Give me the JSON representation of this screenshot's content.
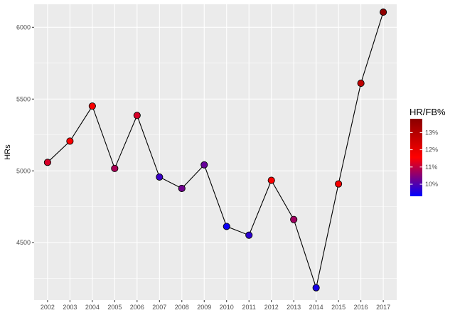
{
  "chart_data": {
    "type": "line",
    "title": "",
    "xlabel": "",
    "ylabel": "HRs",
    "x": [
      2002,
      2003,
      2004,
      2005,
      2006,
      2007,
      2008,
      2009,
      2010,
      2011,
      2012,
      2013,
      2014,
      2015,
      2016,
      2017
    ],
    "series": [
      {
        "values": [
          5059,
          5207,
          5451,
          5017,
          5386,
          4957,
          4878,
          5042,
          4613,
          4552,
          4934,
          4661,
          4186,
          4909,
          5610,
          6105
        ]
      }
    ],
    "color_values": [
      11.2,
      11.6,
      11.7,
      10.8,
      11.2,
      9.8,
      10.3,
      10.2,
      9.4,
      9.7,
      11.6,
      10.7,
      9.5,
      11.7,
      12.8,
      13.7
    ],
    "xlim": [
      2001.4,
      2017.6
    ],
    "ylim": [
      4100,
      6160
    ],
    "y_ticks": [
      4500,
      5000,
      5500,
      6000
    ],
    "grid": true,
    "legend": {
      "title": "HR/FB%",
      "placement": "right",
      "range": [
        9.3,
        13.8
      ],
      "ticks": [
        10,
        11,
        12,
        13
      ],
      "tick_labels": [
        "10%",
        "11%",
        "12%",
        "13%"
      ],
      "colors": [
        "#0000ff",
        "#ff0000",
        "#8b0000"
      ]
    },
    "colors": {
      "panel": "#ebebeb",
      "grid_major": "#ffffff",
      "line": "#000000",
      "point_outline": "#000000"
    }
  }
}
